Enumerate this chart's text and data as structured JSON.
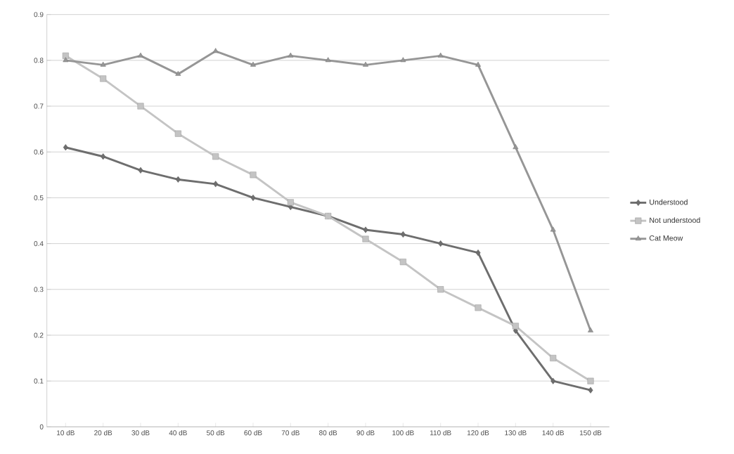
{
  "chart_data": {
    "type": "line",
    "categories": [
      "10 dB",
      "20 dB",
      "30 dB",
      "40 dB",
      "50 dB",
      "60 dB",
      "70 dB",
      "80 dB",
      "90 dB",
      "100 dB",
      "110 dB",
      "120 dB",
      "130 dB",
      "140 dB",
      "150 dB"
    ],
    "series": [
      {
        "name": "Understood",
        "color": "#6e6e6e",
        "marker": "diamond",
        "values": [
          0.61,
          0.59,
          0.56,
          0.54,
          0.53,
          0.5,
          0.48,
          0.46,
          0.43,
          0.42,
          0.4,
          0.38,
          0.21,
          0.1,
          0.08
        ]
      },
      {
        "name": "Not understood",
        "color": "#c4c4c4",
        "marker": "square",
        "values": [
          0.81,
          0.76,
          0.7,
          0.64,
          0.59,
          0.55,
          0.49,
          0.46,
          0.41,
          0.36,
          0.3,
          0.26,
          0.22,
          0.15,
          0.1
        ]
      },
      {
        "name": "Cat Meow",
        "color": "#969696",
        "marker": "triangle",
        "values": [
          0.8,
          0.79,
          0.81,
          0.77,
          0.82,
          0.79,
          0.81,
          0.8,
          0.79,
          0.8,
          0.81,
          0.79,
          0.61,
          0.43,
          0.21
        ]
      }
    ],
    "ylim": [
      0,
      0.9
    ],
    "yticks": [
      0,
      0.1,
      0.2,
      0.3,
      0.4,
      0.5,
      0.6,
      0.7,
      0.8,
      0.9
    ],
    "grid": "y",
    "legend": "right"
  }
}
